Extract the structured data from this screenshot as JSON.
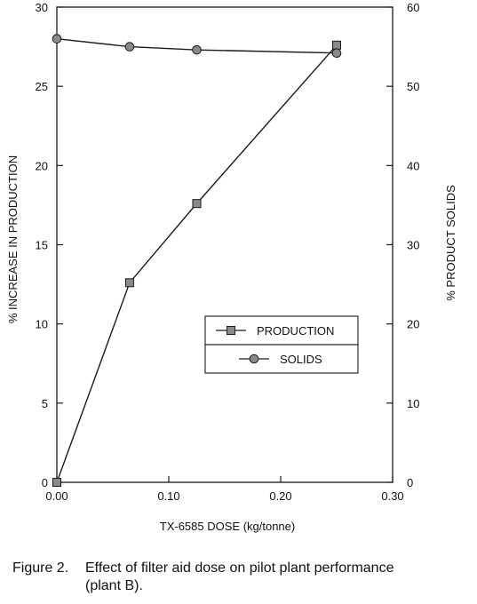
{
  "chart_data": {
    "type": "line",
    "x": [
      0.0,
      0.065,
      0.125,
      0.25
    ],
    "series": [
      {
        "name": "PRODUCTION",
        "axis": "left",
        "marker": "square",
        "values": [
          0.0,
          12.6,
          17.6,
          27.6
        ]
      },
      {
        "name": "SOLIDS",
        "axis": "right",
        "marker": "circle",
        "values": [
          56.0,
          55.0,
          54.6,
          54.2
        ]
      }
    ],
    "xlabel": "TX-6585 DOSE (kg/tonne)",
    "ylabel_left": "% INCREASE IN PRODUCTION",
    "ylabel_right": "% PRODUCT SOLIDS",
    "xlim": [
      0.0,
      0.3
    ],
    "ylim_left": [
      0,
      30
    ],
    "ylim_right": [
      0,
      60
    ],
    "x_ticks": [
      "0.00",
      "0.10",
      "0.20",
      "0.30"
    ],
    "y_ticks_left": [
      "0",
      "5",
      "10",
      "15",
      "20",
      "25",
      "30"
    ],
    "y_ticks_right": [
      "0",
      "10",
      "20",
      "30",
      "40",
      "50",
      "60"
    ],
    "grid": false,
    "legend_position": "center-right"
  },
  "caption": {
    "label": "Figure 2.",
    "line1": "Effect of filter aid dose on pilot plant performance",
    "line2": "(plant B)."
  },
  "colors": {
    "line": "#1a1a1a",
    "marker_fill": "#8a8a8a"
  }
}
